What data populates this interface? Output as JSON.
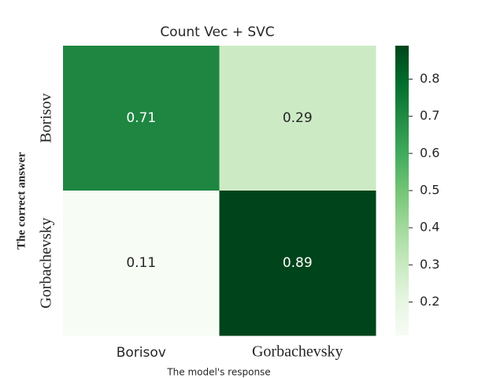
{
  "chart_data": {
    "type": "heatmap",
    "title": "Count Vec + SVC",
    "x_label": "The model's response",
    "y_label": "The correct answer",
    "x_categories": [
      "Borisov",
      "Gorbachevsky"
    ],
    "y_categories": [
      "Borisov",
      "Gorbachevsky"
    ],
    "values": [
      [
        0.71,
        0.29
      ],
      [
        0.11,
        0.89
      ]
    ],
    "colormap": [
      "#f7fcf5",
      "#e5f5e0",
      "#c7e9c0",
      "#a1d99b",
      "#74c476",
      "#41ab5d",
      "#238b45",
      "#006d2c",
      "#00441b"
    ],
    "colorbar_lim": [
      0.11,
      0.89
    ],
    "colorbar_ticks": [
      0.2,
      0.3,
      0.4,
      0.5,
      0.6,
      0.7,
      0.8
    ]
  }
}
